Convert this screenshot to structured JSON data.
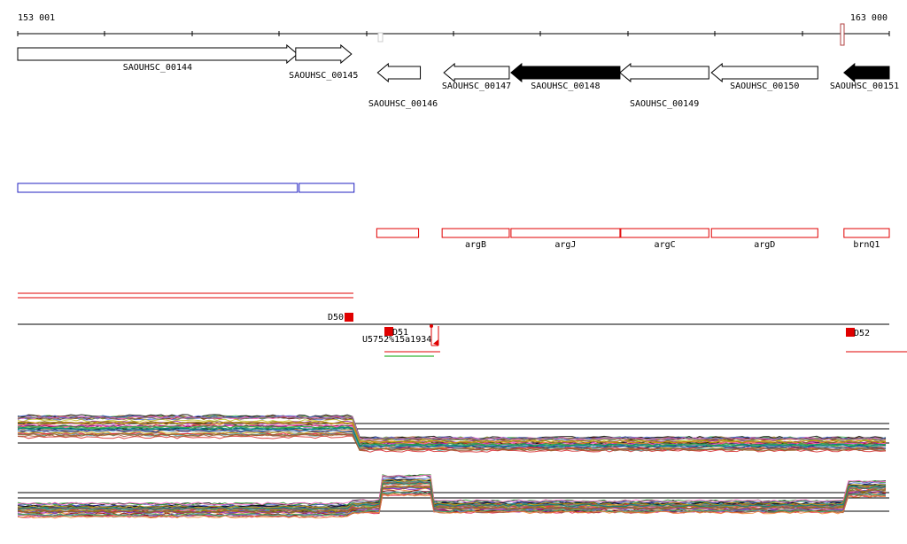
{
  "coords": {
    "start_label": "153 001",
    "end_label": "163 000",
    "start": 153001,
    "end": 163000
  },
  "genes": [
    {
      "label": "SAOUHSC_00144",
      "start": 153001,
      "end": 156210,
      "strand": "+",
      "filled": false,
      "label_row": 1
    },
    {
      "label": "SAOUHSC_00145",
      "start": 156190,
      "end": 156830,
      "strand": "+",
      "filled": false,
      "label_row": 2
    },
    {
      "label": "SAOUHSC_00146",
      "start": 157130,
      "end": 157620,
      "strand": "-",
      "filled": false,
      "label_row": 3
    },
    {
      "label": "SAOUHSC_00147",
      "start": 157890,
      "end": 158640,
      "strand": "-",
      "filled": false,
      "label_row": 2
    },
    {
      "label": "SAOUHSC_00148",
      "start": 158660,
      "end": 159910,
      "strand": "-",
      "filled": true,
      "label_row": 2
    },
    {
      "label": "SAOUHSC_00149",
      "start": 159910,
      "end": 160930,
      "strand": "-",
      "filled": false,
      "label_row": 3
    },
    {
      "label": "SAOUHSC_00150",
      "start": 160960,
      "end": 162180,
      "strand": "-",
      "filled": false,
      "label_row": 2
    },
    {
      "label": "SAOUHSC_00151",
      "start": 162480,
      "end": 163000,
      "strand": "-",
      "filled": true,
      "label_row": 2
    }
  ],
  "blue_features": [
    {
      "start": 153001,
      "end": 156210
    },
    {
      "start": 156230,
      "end": 156860
    }
  ],
  "red_features": [
    {
      "label": "",
      "start": 157120,
      "end": 157600
    },
    {
      "label": "argB",
      "start": 157870,
      "end": 158640
    },
    {
      "label": "argJ",
      "start": 158660,
      "end": 159910
    },
    {
      "label": "argC",
      "start": 159920,
      "end": 160930
    },
    {
      "label": "argD",
      "start": 160960,
      "end": 162180
    },
    {
      "label": "brnQ1",
      "start": 162480,
      "end": 163000
    }
  ],
  "markers": [
    {
      "label": "D50"
    },
    {
      "label": "D51"
    },
    {
      "label": "U5752%15a1934"
    },
    {
      "label": "D52"
    }
  ],
  "colors": {
    "gene_fill": "#000000",
    "blue": "#2020c0",
    "red": "#e00000",
    "green": "#00a000",
    "trace_palette": [
      "#000000",
      "#e6194b",
      "#3cb44b",
      "#4363d8",
      "#f58231",
      "#911eb4",
      "#46a0a0",
      "#a0522d",
      "#808000",
      "#ff66cc",
      "#808080",
      "#c8a000",
      "#008080",
      "#9a6324",
      "#7a0000",
      "#000075",
      "#5a9bd5",
      "#d62728",
      "#2ca02c",
      "#bcbd22"
    ]
  },
  "tracks": {
    "upper_levels": [
      4.8,
      4.2
    ],
    "lower_levels": [
      3.0,
      2.5
    ]
  }
}
